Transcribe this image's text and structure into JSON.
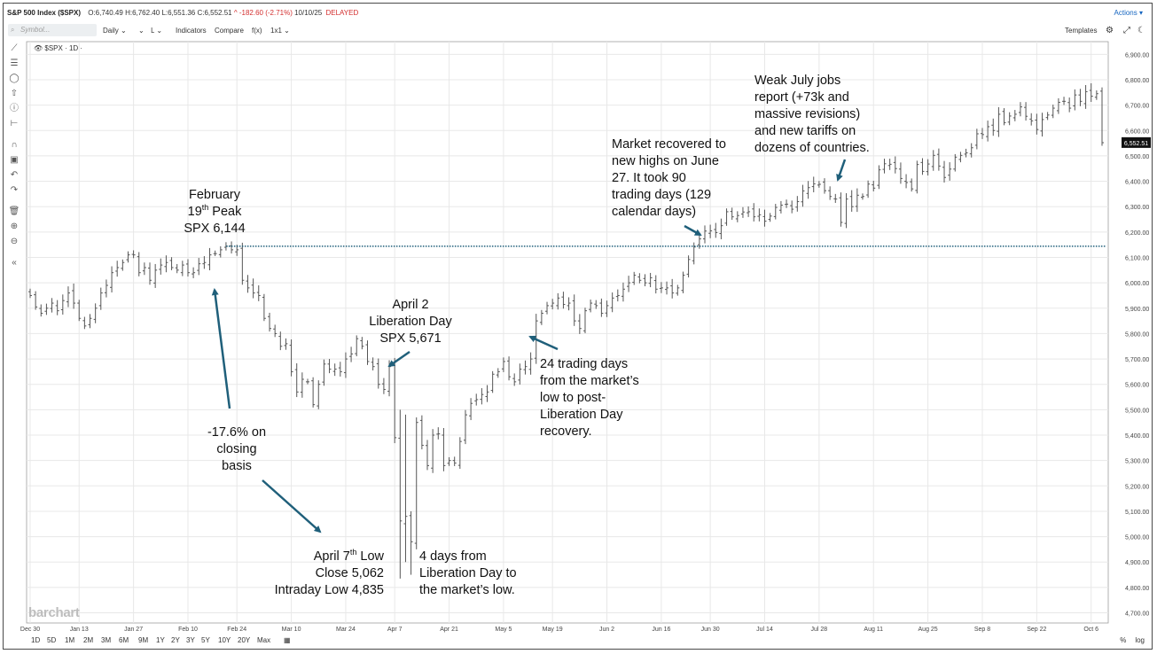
{
  "header": {
    "symbol_title": "S&P 500 Index ($SPX)",
    "open": "O:6,740.49",
    "high": "H:6,762.40",
    "low": "L:6,551.36",
    "close": "C:6,552.51",
    "change": "^ -182.60 (-2.71%)",
    "date": "10/10/25",
    "status": "DELAYED",
    "actions_label": "Actions ▾"
  },
  "toolbar": {
    "search_placeholder": "Symbol...",
    "interval": "Daily ⌄",
    "items": [
      "⌄",
      "Ⳑ ⌄",
      "Indicators",
      "Compare",
      "f(x)",
      "1x1 ⌄"
    ],
    "templates": "Templates"
  },
  "legend_text": "$SPX · 1D ·",
  "price_label": "6,552.51",
  "logo": "barchart",
  "periods": [
    "1D",
    "5D",
    "1M",
    "2M",
    "3M",
    "6M",
    "9M",
    "1Y",
    "2Y",
    "3Y",
    "5Y",
    "10Y",
    "20Y",
    "Max"
  ],
  "scale_buttons": [
    "%",
    "log"
  ],
  "annotations": {
    "feb_line1": "February",
    "feb_line2_pre": "19",
    "feb_line2_sup": "th",
    "feb_line2_post": " Peak",
    "feb_line3": "SPX 6,144",
    "drop_line1": "-17.6% on",
    "drop_line2": "closing",
    "drop_line3": "basis",
    "apr2_line1": "April 2",
    "apr2_line2": "Liberation Day",
    "apr2_line3": "SPX 5,671",
    "apr7_line1_pre": "April 7",
    "apr7_line1_sup": "th",
    "apr7_line1_post": " Low",
    "apr7_line2": "Close 5,062",
    "apr7_line3": "Intraday Low 4,835",
    "fourdays_line1": "4 days from",
    "fourdays_line2": "Liberation Day to",
    "fourdays_line3": "the market’s low.",
    "days24_line1": "24 trading days",
    "days24_line2": "from the market’s",
    "days24_line3": "low to post-",
    "days24_line4": "Liberation Day",
    "days24_line5": "recovery.",
    "recover_line1": "Market recovered to",
    "recover_line2": "new highs on June",
    "recover_line3": "27. It took 90",
    "recover_line4": "trading days (129",
    "recover_line5": "calendar days)",
    "july_line1": "Weak July jobs",
    "july_line2": "report (+73k and",
    "july_line3": "massive revisions)",
    "july_line4": "and new tariffs on",
    "july_line5": "dozens of countries."
  },
  "chart_data": {
    "type": "ohlc",
    "title": "S&P 500 Index ($SPX)",
    "y_ticks": [
      4700,
      4800,
      4900,
      5000,
      5100,
      5200,
      5300,
      5400,
      5500,
      5600,
      5700,
      5800,
      5900,
      6000,
      6100,
      6200,
      6300,
      6400,
      6500,
      6600,
      6700,
      6800,
      6900
    ],
    "ylim": [
      4660,
      6950
    ],
    "x_ticks": [
      "Dec 30",
      "Jan 13",
      "Jan 27",
      "Feb 10",
      "Feb 24",
      "Mar 10",
      "Mar 24",
      "Apr 7",
      "Apr 21",
      "May 5",
      "May 19",
      "Jun 2",
      "Jun 16",
      "Jun 30",
      "Jul 14",
      "Jul 28",
      "Aug 11",
      "Aug 25",
      "Sep 8",
      "Sep 22",
      "Oct 6"
    ],
    "x_tick_index": [
      0,
      9,
      19,
      29,
      38,
      48,
      58,
      67,
      77,
      87,
      96,
      106,
      116,
      125,
      135,
      145,
      155,
      165,
      175,
      185,
      195
    ],
    "grid": true,
    "reference_line": {
      "value": 6144,
      "style": "dotted"
    },
    "last_price": 6552.51,
    "closes": [
      5950,
      5905,
      5880,
      5900,
      5920,
      5890,
      5930,
      5960,
      5920,
      5860,
      5830,
      5860,
      5900,
      5960,
      5990,
      6040,
      6060,
      6080,
      6110,
      6110,
      6040,
      6060,
      6010,
      6050,
      6070,
      6080,
      6060,
      6050,
      6070,
      6040,
      6040,
      6075,
      6080,
      6110,
      6115,
      6130,
      6144,
      6130,
      6130,
      6010,
      5980,
      5960,
      5950,
      5860,
      5820,
      5800,
      5750,
      5760,
      5650,
      5570,
      5620,
      5610,
      5520,
      5600,
      5680,
      5660,
      5660,
      5650,
      5700,
      5720,
      5780,
      5750,
      5690,
      5670,
      5600,
      5580,
      5670,
      5390,
      5062,
      5080,
      4980,
      5450,
      5360,
      5280,
      5400,
      5405,
      5280,
      5300,
      5290,
      5375,
      5480,
      5525,
      5540,
      5560,
      5570,
      5640,
      5650,
      5690,
      5630,
      5610,
      5660,
      5670,
      5700,
      5850,
      5880,
      5910,
      5920,
      5940,
      5915,
      5920,
      5850,
      5820,
      5890,
      5920,
      5910,
      5880,
      5910,
      5940,
      5950,
      5975,
      6000,
      6030,
      6010,
      6000,
      6020,
      5975,
      5980,
      5980,
      5960,
      5980,
      6030,
      6092,
      6141,
      6173,
      6204,
      6205,
      6198,
      6225,
      6280,
      6260,
      6265,
      6279,
      6280,
      6260,
      6268,
      6243,
      6263,
      6297,
      6306,
      6310,
      6290,
      6320,
      6362,
      6375,
      6390,
      6388,
      6363,
      6340,
      6330,
      6238,
      6330,
      6300,
      6345,
      6340,
      6389,
      6373,
      6445,
      6469,
      6467,
      6450,
      6411,
      6395,
      6370,
      6466,
      6439,
      6468,
      6502,
      6460,
      6415,
      6448,
      6495,
      6502,
      6512,
      6532,
      6587,
      6584,
      6615,
      6600,
      6664,
      6631,
      6657,
      6664,
      6693,
      6656,
      6638,
      6604,
      6643,
      6661,
      6688,
      6711,
      6715,
      6688,
      6740,
      6715,
      6753,
      6735,
      6745,
      6552
    ]
  }
}
